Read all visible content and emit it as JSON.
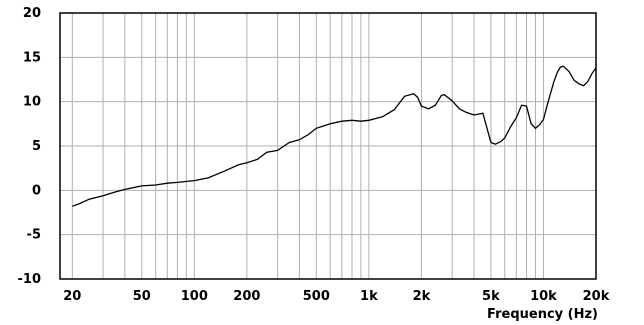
{
  "chart_data": {
    "type": "line",
    "title": "",
    "xlabel": "Frequency  (Hz)",
    "ylabel": "",
    "x_scale": "log",
    "xlim": [
      17,
      20000
    ],
    "ylim": [
      -10,
      20
    ],
    "grid": true,
    "legend": "none",
    "x_ticks": [
      {
        "value": 20,
        "label": "20"
      },
      {
        "value": 50,
        "label": "50"
      },
      {
        "value": 100,
        "label": "100"
      },
      {
        "value": 200,
        "label": "200"
      },
      {
        "value": 500,
        "label": "500"
      },
      {
        "value": 1000,
        "label": "1k"
      },
      {
        "value": 2000,
        "label": "2k"
      },
      {
        "value": 5000,
        "label": "5k"
      },
      {
        "value": 10000,
        "label": "10k"
      },
      {
        "value": 20000,
        "label": "20k"
      }
    ],
    "y_ticks": [
      {
        "value": 20,
        "label": "20"
      },
      {
        "value": 15,
        "label": "15"
      },
      {
        "value": 10,
        "label": "10"
      },
      {
        "value": 5,
        "label": "5"
      },
      {
        "value": 0,
        "label": "0"
      },
      {
        "value": -5,
        "label": "-5"
      },
      {
        "value": -10,
        "label": "-10"
      }
    ],
    "colors": {
      "line": "#000000",
      "grid": "#b0b0b0",
      "frame": "#000000"
    },
    "series": [
      {
        "x": [
          20,
          22,
          25,
          30,
          35,
          40,
          50,
          60,
          70,
          80,
          100,
          120,
          150,
          180,
          200,
          230,
          260,
          300,
          350,
          400,
          450,
          500,
          600,
          700,
          800,
          900,
          1000,
          1200,
          1400,
          1600,
          1800,
          1900,
          2000,
          2200,
          2400,
          2600,
          2700,
          3000,
          3300,
          3600,
          4000,
          4500,
          5000,
          5300,
          5700,
          6000,
          6500,
          7000,
          7500,
          8000,
          8500,
          9000,
          9500,
          10000,
          10500,
          11000,
          11500,
          12000,
          12500,
          13000,
          14000,
          15000,
          16000,
          17000,
          18000,
          19000,
          20000
        ],
        "y": [
          -1.8,
          -1.5,
          -1.0,
          -0.6,
          -0.2,
          0.1,
          0.5,
          0.6,
          0.8,
          0.9,
          1.1,
          1.4,
          2.2,
          2.9,
          3.1,
          3.5,
          4.3,
          4.5,
          5.4,
          5.7,
          6.3,
          7.0,
          7.5,
          7.8,
          7.9,
          7.8,
          7.9,
          8.3,
          9.1,
          10.6,
          10.9,
          10.5,
          9.5,
          9.2,
          9.6,
          10.7,
          10.8,
          10.1,
          9.2,
          8.8,
          8.5,
          8.7,
          5.4,
          5.2,
          5.5,
          5.9,
          7.2,
          8.2,
          9.6,
          9.5,
          7.5,
          7.0,
          7.4,
          8.0,
          9.6,
          11.0,
          12.3,
          13.3,
          13.9,
          14.0,
          13.4,
          12.4,
          12.0,
          11.8,
          12.3,
          13.2,
          13.8
        ]
      }
    ]
  }
}
